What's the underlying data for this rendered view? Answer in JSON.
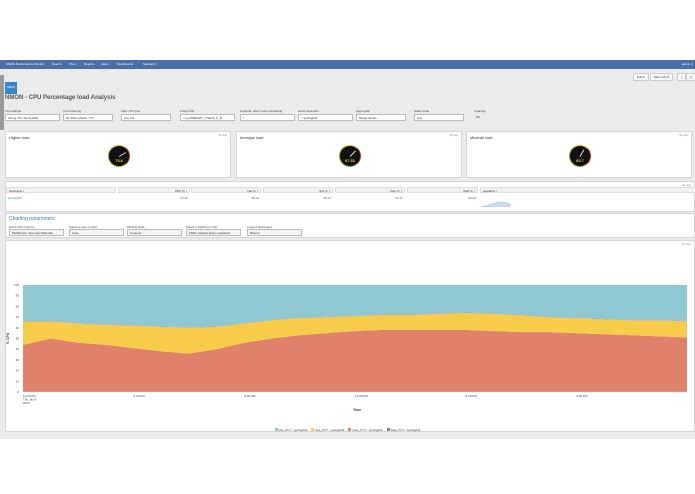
{
  "nav": {
    "brand": "NMON Performance Monitor",
    "items": [
      "Search",
      "Pivot",
      "Reports",
      "Alerts",
      "Dashboards",
      "Settings ▾"
    ],
    "user": "admin ▾"
  },
  "toolbar": {
    "edit": "Edit ▾",
    "more_info": "More Info ▾"
  },
  "logo_text": "NMON",
  "title": "NMON - CPU Percentage load Analysis",
  "filters": [
    {
      "label": "Time Range",
      "value": "during Thu Jan 8 2015"
    },
    {
      "label": "Time Filtering",
      "value": "No Filter (24/24, 7/7)"
    },
    {
      "label": "Filter OS Type",
      "value": "Any OS"
    },
    {
      "label": "Frame IDs",
      "value": "× H_IMDEART_770412_F_B"
    },
    {
      "label": "Optional: Filter hosts populating",
      "value": "*"
    },
    {
      "label": "Hosts Selection",
      "value": "× spufsgd44"
    },
    {
      "label": "Aggregate",
      "value": "Single Series"
    },
    {
      "label": "Stats mode",
      "value": "Avg"
    },
    {
      "label": "Charting",
      "value": "On"
    }
  ],
  "gauges": [
    {
      "title": "Higher load",
      "ago": "5m ago",
      "value": "73.6"
    },
    {
      "title": "Average load",
      "ago": "5m ago",
      "value": "67.52"
    },
    {
      "title": "Minimal load",
      "ago": "5m ago",
      "value": "60.7"
    }
  ],
  "table": {
    "ago": "5m ago",
    "headers": [
      "hostname ↕",
      "CPU % ↕",
      "Idle % ↕",
      "Sys % ↕",
      "User % ↕",
      "Wait % ↕",
      "sparkline ↕"
    ],
    "rows": [
      [
        "spufsgd44",
        "67.52",
        "35.24",
        "18.27",
        "51.47",
        "00.24"
      ]
    ]
  },
  "params": {
    "title": "Charting parameters:",
    "fields": [
      {
        "label": "Show CPU load by:",
        "value": "MultiSeries: Sys,User,Wait,Idle"
      },
      {
        "label": "Select a type of chart:",
        "value": "Area"
      },
      {
        "label": "Missing Data:",
        "value": "Connect"
      },
      {
        "label": "Select a stacking mode:",
        "value": "100% stacked (lines excluded)"
      },
      {
        "label": "Legend placement:",
        "value": "Bottom"
      }
    ]
  },
  "chart_ago": "5m ago",
  "colors": {
    "idle": "#8fc7d3",
    "sys": "#f7cc4b",
    "user": "#e0826a",
    "wait": "#8e7db0",
    "nav": "#4a6ea8"
  },
  "chart_data": {
    "type": "area",
    "stacking": "100%",
    "xlabel": "Time",
    "ylabel": "% CPU",
    "ylim": [
      0,
      100
    ],
    "yticks": [
      0,
      10,
      20,
      30,
      40,
      50,
      60,
      70,
      80,
      90,
      100
    ],
    "x_hours": [
      0,
      1,
      2,
      3,
      4,
      5,
      6,
      7,
      8,
      9,
      10,
      11,
      12,
      13,
      14,
      15,
      16,
      17,
      18,
      19,
      20,
      21,
      22,
      23,
      24
    ],
    "xticks": [
      {
        "hour": 0,
        "label": [
          "12:00 AM",
          "Thu Jan 8",
          "2015"
        ]
      },
      {
        "hour": 4,
        "label": [
          "4:00 AM"
        ]
      },
      {
        "hour": 8,
        "label": [
          "8:00 AM"
        ]
      },
      {
        "hour": 12,
        "label": [
          "12:00 PM"
        ]
      },
      {
        "hour": 16,
        "label": [
          "4:00 PM"
        ]
      },
      {
        "hour": 20,
        "label": [
          "8:00 PM"
        ]
      }
    ],
    "legend_position": "bottom",
    "series": [
      {
        "name": "User_PCT : spufsgd44",
        "color": "#e0826a",
        "values": [
          44,
          50,
          46,
          44,
          41,
          38,
          36,
          40,
          46,
          50,
          53,
          55,
          57,
          58,
          58,
          58,
          58,
          57,
          56,
          56,
          55,
          54,
          53,
          52,
          51
        ]
      },
      {
        "name": "Sys_PCT : spufsgd44",
        "color": "#f7cc4b",
        "values": [
          22,
          16,
          18,
          19,
          21,
          23,
          24,
          21,
          18,
          17,
          16,
          15,
          14,
          14,
          14,
          15,
          16,
          16,
          16,
          14,
          14,
          14,
          14,
          15,
          15
        ]
      },
      {
        "name": "Wait_PCT : spufsgd44",
        "color": "#8e7db0",
        "values": [
          0.3,
          0.3,
          0.3,
          0.3,
          0.3,
          0.3,
          0.3,
          0.3,
          0.3,
          0.3,
          0.3,
          0.3,
          0.3,
          0.3,
          0.3,
          0.3,
          0.3,
          0.3,
          0.3,
          0.3,
          0.3,
          0.3,
          0.3,
          0.3,
          0.3
        ]
      },
      {
        "name": "Idle_PCT : spufsgd44",
        "color": "#8fc7d3",
        "values": [
          33.7,
          33.7,
          35.7,
          36.7,
          37.7,
          38.7,
          39.7,
          38.7,
          35.7,
          32.7,
          30.7,
          29.7,
          28.7,
          27.7,
          27.7,
          26.7,
          25.7,
          26.7,
          27.7,
          29.7,
          30.7,
          31.7,
          32.7,
          32.7,
          33.7
        ]
      }
    ],
    "legend_order": [
      "Idle_PCT : spufsgd44",
      "Sys_PCT : spufsgd44",
      "User_PCT : spufsgd44",
      "Wait_PCT : spufsgd44"
    ]
  }
}
